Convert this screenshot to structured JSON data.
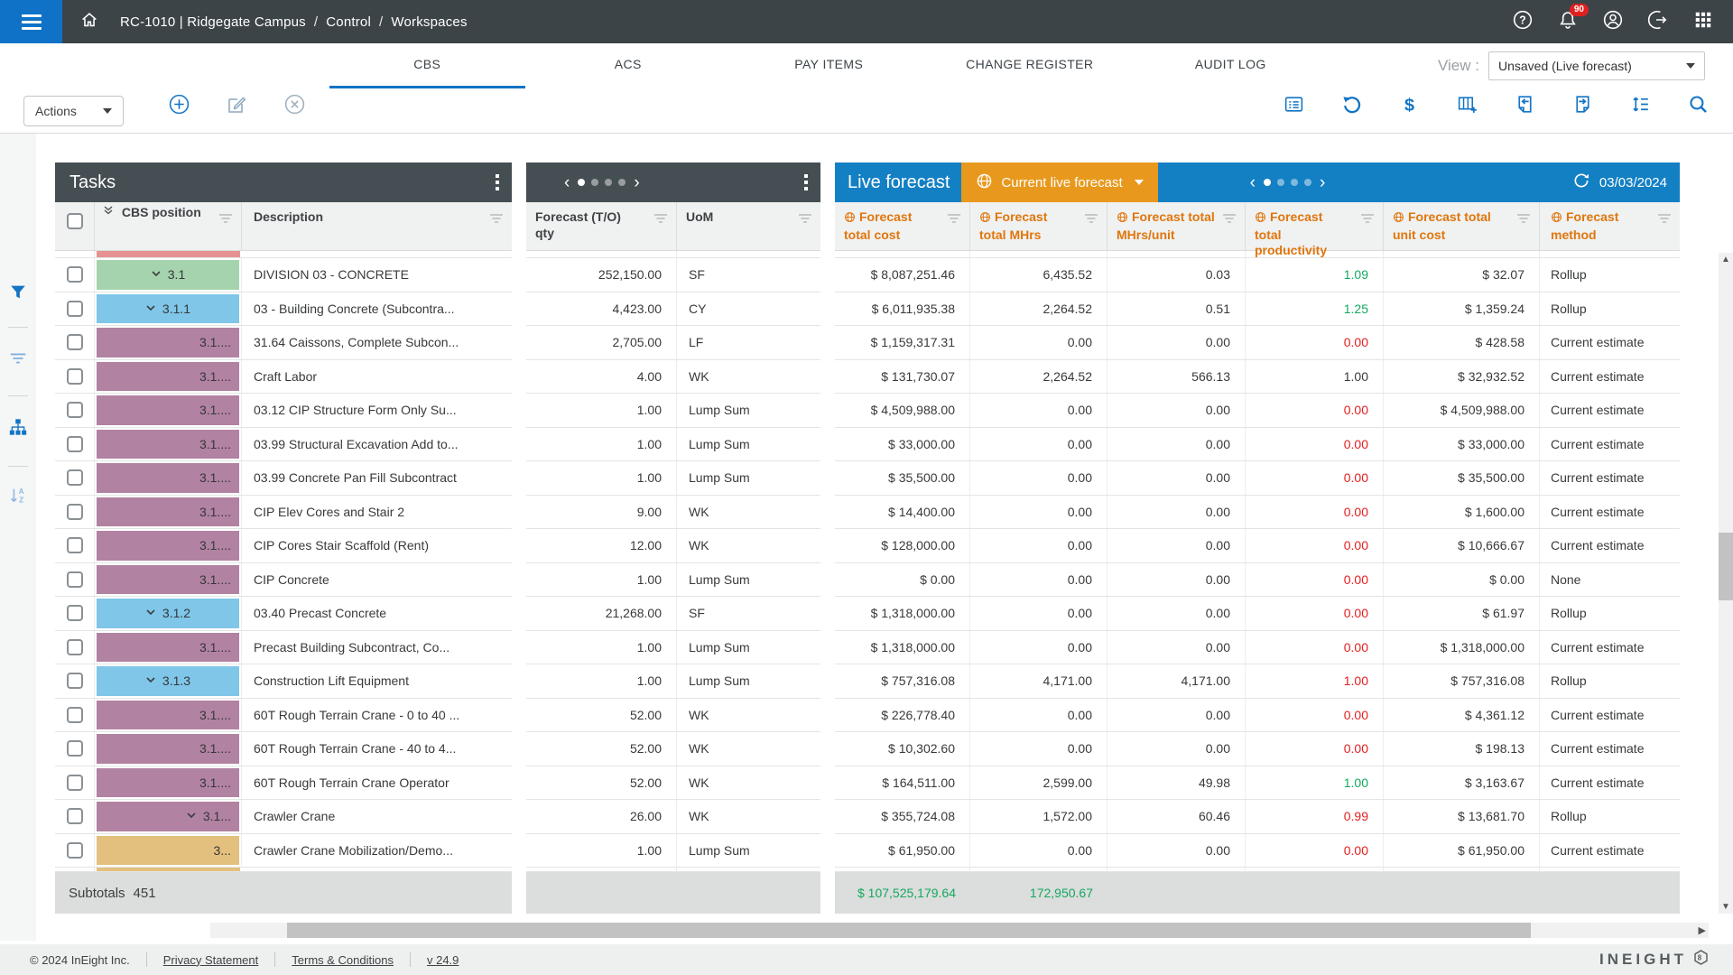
{
  "navbar": {
    "breadcrumb_root": "RC-1010 | Ridgegate Campus",
    "sep": "/",
    "breadcrumb_section": "Control",
    "breadcrumb_page": "Workspaces",
    "notification_count": "90"
  },
  "tabs": {
    "items": [
      {
        "label": "CBS",
        "active": true
      },
      {
        "label": "ACS",
        "active": false
      },
      {
        "label": "PAY ITEMS",
        "active": false
      },
      {
        "label": "CHANGE REGISTER",
        "active": false
      },
      {
        "label": "AUDIT LOG",
        "active": false
      }
    ],
    "view_label": "View :",
    "view_value": "Unsaved (Live forecast)"
  },
  "toolbar": {
    "actions_label": "Actions"
  },
  "tasks": {
    "title": "Tasks",
    "col_position": "CBS position",
    "col_description": "Description",
    "subtotals_label": "Subtotals",
    "subtotals_count": "451"
  },
  "qty_panel": {
    "col_qty": "Forecast (T/O) qty",
    "col_uom": "UoM"
  },
  "forecast": {
    "title": "Live forecast",
    "selector_label": "Current live forecast",
    "date": "03/03/2024",
    "columns": [
      "Forecast total cost",
      "Forecast total MHrs",
      "Forecast total MHrs/unit",
      "Forecast total productivity",
      "Forecast total unit cost",
      "Forecast method"
    ],
    "subtotal_cost": "$ 107,525,179.64",
    "subtotal_mhrs": "172,950.67"
  },
  "rows": [
    {
      "pos": "3.1",
      "chevron": true,
      "color": "green",
      "align": "center",
      "desc": "DIVISION 03 - CONCRETE",
      "qty": "252,150.00",
      "uom": "SF",
      "cost": "$ 8,087,251.46",
      "mhrs": "6,435.52",
      "mhrs_unit": "0.03",
      "prod": "1.09",
      "prod_color": "grn",
      "unit_cost": "$ 32.07",
      "method": "Rollup"
    },
    {
      "pos": "3.1.1",
      "chevron": true,
      "color": "blue",
      "align": "center",
      "desc": "03 - Building Concrete (Subcontra...",
      "qty": "4,423.00",
      "uom": "CY",
      "cost": "$ 6,011,935.38",
      "mhrs": "2,264.52",
      "mhrs_unit": "0.51",
      "prod": "1.25",
      "prod_color": "grn",
      "unit_cost": "$ 1,359.24",
      "method": "Rollup"
    },
    {
      "pos": "3.1....",
      "chevron": false,
      "color": "mauve",
      "align": "right",
      "desc": "31.64 Caissons, Complete Subcon...",
      "qty": "2,705.00",
      "uom": "LF",
      "cost": "$ 1,159,317.31",
      "mhrs": "0.00",
      "mhrs_unit": "0.00",
      "prod": "0.00",
      "prod_color": "red",
      "unit_cost": "$ 428.58",
      "method": "Current estimate"
    },
    {
      "pos": "3.1....",
      "chevron": false,
      "color": "mauve",
      "align": "right",
      "desc": "Craft Labor",
      "qty": "4.00",
      "uom": "WK",
      "cost": "$ 131,730.07",
      "mhrs": "2,264.52",
      "mhrs_unit": "566.13",
      "prod": "1.00",
      "prod_color": "",
      "unit_cost": "$ 32,932.52",
      "method": "Current estimate"
    },
    {
      "pos": "3.1....",
      "chevron": false,
      "color": "mauve",
      "align": "right",
      "desc": "03.12 CIP Structure Form Only Su...",
      "qty": "1.00",
      "uom": "Lump Sum",
      "cost": "$ 4,509,988.00",
      "mhrs": "0.00",
      "mhrs_unit": "0.00",
      "prod": "0.00",
      "prod_color": "red",
      "unit_cost": "$ 4,509,988.00",
      "method": "Current estimate"
    },
    {
      "pos": "3.1....",
      "chevron": false,
      "color": "mauve",
      "align": "right",
      "desc": "03.99 Structural Excavation Add to...",
      "qty": "1.00",
      "uom": "Lump Sum",
      "cost": "$ 33,000.00",
      "mhrs": "0.00",
      "mhrs_unit": "0.00",
      "prod": "0.00",
      "prod_color": "red",
      "unit_cost": "$ 33,000.00",
      "method": "Current estimate"
    },
    {
      "pos": "3.1....",
      "chevron": false,
      "color": "mauve",
      "align": "right",
      "desc": "03.99 Concrete Pan Fill Subcontract",
      "qty": "1.00",
      "uom": "Lump Sum",
      "cost": "$ 35,500.00",
      "mhrs": "0.00",
      "mhrs_unit": "0.00",
      "prod": "0.00",
      "prod_color": "red",
      "unit_cost": "$ 35,500.00",
      "method": "Current estimate"
    },
    {
      "pos": "3.1....",
      "chevron": false,
      "color": "mauve",
      "align": "right",
      "desc": "CIP Elev Cores and Stair 2",
      "qty": "9.00",
      "uom": "WK",
      "cost": "$ 14,400.00",
      "mhrs": "0.00",
      "mhrs_unit": "0.00",
      "prod": "0.00",
      "prod_color": "red",
      "unit_cost": "$ 1,600.00",
      "method": "Current estimate"
    },
    {
      "pos": "3.1....",
      "chevron": false,
      "color": "mauve",
      "align": "right",
      "desc": "CIP Cores Stair Scaffold (Rent)",
      "qty": "12.00",
      "uom": "WK",
      "cost": "$ 128,000.00",
      "mhrs": "0.00",
      "mhrs_unit": "0.00",
      "prod": "0.00",
      "prod_color": "red",
      "unit_cost": "$ 10,666.67",
      "method": "Current estimate"
    },
    {
      "pos": "3.1....",
      "chevron": false,
      "color": "mauve",
      "align": "right",
      "desc": "CIP Concrete",
      "qty": "1.00",
      "uom": "Lump Sum",
      "cost": "$ 0.00",
      "mhrs": "0.00",
      "mhrs_unit": "0.00",
      "prod": "0.00",
      "prod_color": "red",
      "unit_cost": "$ 0.00",
      "method": "None"
    },
    {
      "pos": "3.1.2",
      "chevron": true,
      "color": "blue",
      "align": "center",
      "desc": "03.40 Precast Concrete",
      "qty": "21,268.00",
      "uom": "SF",
      "cost": "$ 1,318,000.00",
      "mhrs": "0.00",
      "mhrs_unit": "0.00",
      "prod": "0.00",
      "prod_color": "red",
      "unit_cost": "$ 61.97",
      "method": "Rollup"
    },
    {
      "pos": "3.1....",
      "chevron": false,
      "color": "mauve",
      "align": "right",
      "desc": "Precast Building Subcontract, Co...",
      "qty": "1.00",
      "uom": "Lump Sum",
      "cost": "$ 1,318,000.00",
      "mhrs": "0.00",
      "mhrs_unit": "0.00",
      "prod": "0.00",
      "prod_color": "red",
      "unit_cost": "$ 1,318,000.00",
      "method": "Current estimate"
    },
    {
      "pos": "3.1.3",
      "chevron": true,
      "color": "blue",
      "align": "center",
      "desc": "Construction Lift Equipment",
      "qty": "1.00",
      "uom": "Lump Sum",
      "cost": "$ 757,316.08",
      "mhrs": "4,171.00",
      "mhrs_unit": "4,171.00",
      "prod": "1.00",
      "prod_color": "red",
      "unit_cost": "$ 757,316.08",
      "method": "Rollup"
    },
    {
      "pos": "3.1....",
      "chevron": false,
      "color": "mauve",
      "align": "right",
      "desc": "60T Rough Terrain Crane - 0 to 40 ...",
      "qty": "52.00",
      "uom": "WK",
      "cost": "$ 226,778.40",
      "mhrs": "0.00",
      "mhrs_unit": "0.00",
      "prod": "0.00",
      "prod_color": "red",
      "unit_cost": "$ 4,361.12",
      "method": "Current estimate"
    },
    {
      "pos": "3.1....",
      "chevron": false,
      "color": "mauve",
      "align": "right",
      "desc": "60T Rough Terrain Crane - 40 to 4...",
      "qty": "52.00",
      "uom": "WK",
      "cost": "$ 10,302.60",
      "mhrs": "0.00",
      "mhrs_unit": "0.00",
      "prod": "0.00",
      "prod_color": "red",
      "unit_cost": "$ 198.13",
      "method": "Current estimate"
    },
    {
      "pos": "3.1....",
      "chevron": false,
      "color": "mauve",
      "align": "right",
      "desc": "60T Rough Terrain Crane Operator",
      "qty": "52.00",
      "uom": "WK",
      "cost": "$ 164,511.00",
      "mhrs": "2,599.00",
      "mhrs_unit": "49.98",
      "prod": "1.00",
      "prod_color": "grn",
      "unit_cost": "$ 3,163.67",
      "method": "Current estimate"
    },
    {
      "pos": "3.1...",
      "chevron": true,
      "color": "mauve",
      "align": "right",
      "desc": "Crawler Crane",
      "qty": "26.00",
      "uom": "WK",
      "cost": "$ 355,724.08",
      "mhrs": "1,572.00",
      "mhrs_unit": "60.46",
      "prod": "0.99",
      "prod_color": "red",
      "unit_cost": "$ 13,681.70",
      "method": "Rollup"
    },
    {
      "pos": "3...",
      "chevron": false,
      "color": "tan",
      "align": "right",
      "desc": "Crawler Crane Mobilization/Demo...",
      "qty": "1.00",
      "uom": "Lump Sum",
      "cost": "$ 61,950.00",
      "mhrs": "0.00",
      "mhrs_unit": "0.00",
      "prod": "0.00",
      "prod_color": "red",
      "unit_cost": "$ 61,950.00",
      "method": "Current estimate"
    }
  ],
  "footer": {
    "copyright": "© 2024 InEight Inc.",
    "privacy": "Privacy Statement",
    "terms": "Terms & Conditions",
    "version": "v 24.9",
    "logo": "INEIGHT"
  },
  "colors": {
    "accent_blue": "#0f72c6",
    "forecast_header_blue": "#1480c4",
    "selector_orange": "#e8991d",
    "column_orange_text": "#e0760c",
    "panel_header_dark": "#454e53",
    "badge_green": "#a5d3ad",
    "badge_blue": "#7fc6e8",
    "badge_mauve": "#b282a2",
    "badge_tan": "#e3c07e",
    "positive_green": "#12a95e",
    "negative_red": "#e41e1e"
  }
}
